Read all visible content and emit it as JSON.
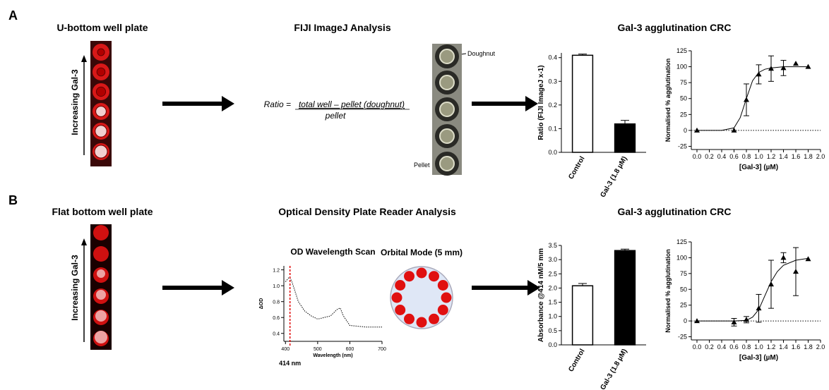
{
  "figure": {
    "panel_a": {
      "label": "A",
      "plate_title": "U-bottom well plate",
      "gradient_label": "Increasing Gal-3",
      "analysis_title": "FIJI ImageJ Analysis",
      "formula": {
        "lhs": "Ratio =",
        "numerator": "total well – pellet (doughnut)",
        "denominator": "pellet"
      },
      "callouts": [
        "Doughnut",
        "Pellet"
      ],
      "crc_title": "Gal-3 agglutination CRC"
    },
    "panel_b": {
      "label": "B",
      "plate_title": "Flat bottom well plate",
      "gradient_label": "Increasing Gal-3",
      "analysis_title": "Optical Density Plate Reader Analysis",
      "orbital_title": "Orbital Mode (5 mm)",
      "crc_title": "Gal-3 agglutination CRC"
    }
  },
  "chart_data": [
    {
      "type": "bar",
      "categories": [
        "Control",
        "Gal-3 (1.8 µM)"
      ],
      "values": [
        0.41,
        0.12
      ],
      "errors": [
        0.005,
        0.015
      ],
      "colors": [
        "#ffffff",
        "#000000"
      ],
      "ylabel": "Ratio (FIJI ImageJ x-1)",
      "ylim": [
        0,
        0.42
      ],
      "yticks": [
        {
          "value": 0,
          "label": "0.0"
        },
        0.1,
        0.2,
        0.3,
        0.4
      ]
    },
    {
      "type": "scatter",
      "x": [
        0,
        0.6,
        0.8,
        1.0,
        1.2,
        1.4,
        1.6,
        1.8
      ],
      "values": [
        0,
        0,
        48,
        88,
        97,
        98,
        105,
        100
      ],
      "errors": [
        0,
        0,
        25,
        15,
        20,
        12,
        0,
        0
      ],
      "fit_x": [
        0,
        0.4,
        0.6,
        0.7,
        0.8,
        0.9,
        1.0,
        1.1,
        1.2,
        1.4,
        1.8
      ],
      "fit_y": [
        0,
        0,
        4,
        20,
        50,
        78,
        91,
        96,
        98,
        100,
        100
      ],
      "color": "#000000",
      "xlabel": "[Gal-3] (µM)",
      "ylabel": "Normalised % agglutination",
      "xlim": [
        0,
        2
      ],
      "xticks": [
        {
          "value": 0,
          "label": "0.0"
        },
        0.2,
        0.4,
        0.6,
        0.8,
        {
          "value": 1,
          "label": "1.0"
        },
        1.2,
        1.4,
        1.6,
        1.8,
        {
          "value": 2,
          "label": "2.0"
        }
      ],
      "ylim": [
        -30,
        125
      ],
      "yticks": [
        -25,
        0,
        25,
        50,
        75,
        100,
        125
      ],
      "zero_line": true
    },
    {
      "type": "bar",
      "categories": [
        "Control",
        "Gal-3 (1.8 µM)"
      ],
      "values": [
        2.08,
        3.32
      ],
      "errors": [
        0.08,
        0.05
      ],
      "colors": [
        "#ffffff",
        "#000000"
      ],
      "ylabel": "Absorbance @414 nM/5 mm",
      "ylim": [
        0,
        3.5
      ],
      "yticks": [
        {
          "value": 0,
          "label": "0.0"
        },
        0.5,
        {
          "value": 1,
          "label": "1.0"
        },
        1.5,
        {
          "value": 2,
          "label": "2.0"
        },
        2.5,
        {
          "value": 3,
          "label": "3.0"
        },
        3.5
      ]
    },
    {
      "type": "scatter",
      "x": [
        0,
        0.6,
        0.8,
        1.0,
        1.2,
        1.4,
        1.6,
        1.8
      ],
      "values": [
        0,
        -2,
        2,
        20,
        58,
        100,
        78,
        98
      ],
      "errors": [
        0,
        6,
        5,
        22,
        38,
        8,
        38,
        0
      ],
      "fit_x": [
        0,
        0.6,
        0.8,
        0.9,
        1.0,
        1.1,
        1.2,
        1.3,
        1.4,
        1.6,
        1.8
      ],
      "fit_y": [
        0,
        0,
        1,
        6,
        18,
        40,
        62,
        78,
        88,
        96,
        99
      ],
      "color": "#000000",
      "xlabel": "[Gal-3] (µM)",
      "ylabel": "Normalised % agglutination",
      "xlim": [
        0,
        2
      ],
      "xticks": [
        {
          "value": 0,
          "label": "0.0"
        },
        0.2,
        0.4,
        0.6,
        0.8,
        {
          "value": 1,
          "label": "1.0"
        },
        1.2,
        1.4,
        1.6,
        1.8,
        {
          "value": 2,
          "label": "2.0"
        }
      ],
      "ylim": [
        -30,
        125
      ],
      "yticks": [
        -25,
        0,
        25,
        50,
        75,
        100,
        125
      ],
      "zero_line": true
    },
    {
      "type": "line",
      "title": "OD Wavelength Scan",
      "x": [
        400,
        410,
        414,
        420,
        440,
        460,
        480,
        500,
        520,
        540,
        560,
        570,
        580,
        600,
        650,
        700
      ],
      "values": [
        1.05,
        1.1,
        1.1,
        1.05,
        0.8,
        0.68,
        0.62,
        0.58,
        0.6,
        0.62,
        0.7,
        0.72,
        0.62,
        0.5,
        0.48,
        0.48
      ],
      "color": "#000000",
      "xlabel": "Wavelength (nm)",
      "ylabel": "ΔOD",
      "xlim": [
        395,
        700
      ],
      "xticks": [
        400,
        500,
        600,
        700
      ],
      "ylim": [
        0.3,
        1.25
      ],
      "yticks": [
        0.4,
        0.6,
        0.8,
        {
          "value": 1,
          "label": "1.0"
        },
        1.2
      ],
      "marker": {
        "x": 414,
        "label": "414 nm",
        "color": "#e00000"
      }
    }
  ]
}
